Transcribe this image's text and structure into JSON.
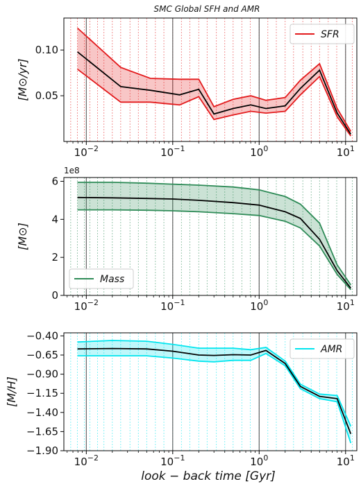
{
  "title": "SMC Global SFH and AMR",
  "xlabel": "look − back time [Gyr]",
  "chart_data": [
    {
      "type": "line",
      "name": "sfr-panel",
      "ylabel": "[M⊙/yr]",
      "legend": "SFR",
      "legend_loc": "top-right",
      "color": "#e31a1c",
      "xscale": "log",
      "xlim": [
        0.0055,
        13.5
      ],
      "ylim": [
        0.0,
        0.135
      ],
      "yticks": [
        0.05,
        0.1
      ],
      "ytick_labels": [
        "0.05",
        "0.10"
      ],
      "x": [
        0.0079,
        0.025,
        0.055,
        0.12,
        0.2,
        0.3,
        0.5,
        0.8,
        1.2,
        2.0,
        3.0,
        5.0,
        8.0,
        11.5
      ],
      "y": [
        0.098,
        0.06,
        0.056,
        0.051,
        0.057,
        0.03,
        0.036,
        0.04,
        0.036,
        0.039,
        0.058,
        0.078,
        0.031,
        0.008
      ],
      "y_upper": [
        0.124,
        0.081,
        0.069,
        0.068,
        0.068,
        0.038,
        0.046,
        0.05,
        0.045,
        0.048,
        0.067,
        0.085,
        0.036,
        0.011
      ],
      "y_lower": [
        0.079,
        0.043,
        0.043,
        0.04,
        0.049,
        0.024,
        0.029,
        0.033,
        0.031,
        0.033,
        0.051,
        0.071,
        0.027,
        0.006
      ],
      "bins": [
        0.0066,
        0.0079,
        0.0095,
        0.011,
        0.0135,
        0.016,
        0.02,
        0.025,
        0.032,
        0.04,
        0.05,
        0.063,
        0.079,
        0.1,
        0.126,
        0.158,
        0.2,
        0.25,
        0.32,
        0.4,
        0.5,
        0.63,
        0.79,
        1.0,
        1.26,
        1.58,
        2.0,
        2.5,
        3.2,
        4.0,
        5.0,
        6.3,
        7.9,
        10.0,
        12.0
      ]
    },
    {
      "type": "line",
      "name": "mass-panel",
      "ylabel": "[M⊙]",
      "offset": "1e8",
      "legend": "Mass",
      "legend_loc": "bottom-left",
      "color": "#2e8b57",
      "xscale": "log",
      "xlim": [
        0.0055,
        13.5
      ],
      "ylim": [
        0,
        6.2
      ],
      "yticks": [
        0,
        2,
        4,
        6
      ],
      "ytick_labels": [
        "0",
        "2",
        "4",
        "6"
      ],
      "x": [
        0.0079,
        0.02,
        0.05,
        0.1,
        0.2,
        0.5,
        1.0,
        2.0,
        3.0,
        5.0,
        8.0,
        11.5
      ],
      "y": [
        5.15,
        5.13,
        5.1,
        5.07,
        5.0,
        4.88,
        4.75,
        4.4,
        4.05,
        2.95,
        1.3,
        0.38
      ],
      "y_upper": [
        5.95,
        5.95,
        5.9,
        5.85,
        5.8,
        5.7,
        5.55,
        5.2,
        4.8,
        3.8,
        1.6,
        0.55
      ],
      "y_lower": [
        4.5,
        4.5,
        4.48,
        4.45,
        4.4,
        4.3,
        4.2,
        3.9,
        3.55,
        2.6,
        1.1,
        0.3
      ],
      "bins": [
        0.0066,
        0.0079,
        0.0095,
        0.011,
        0.0135,
        0.016,
        0.02,
        0.025,
        0.032,
        0.04,
        0.05,
        0.063,
        0.079,
        0.1,
        0.126,
        0.158,
        0.2,
        0.25,
        0.32,
        0.4,
        0.5,
        0.63,
        0.79,
        1.0,
        1.26,
        1.58,
        2.0,
        2.5,
        3.2,
        4.0,
        5.0,
        6.3,
        7.9,
        10.0,
        12.0
      ]
    },
    {
      "type": "line",
      "name": "amr-panel",
      "ylabel": "[M/H]",
      "legend": "AMR",
      "legend_loc": "top-right",
      "color": "#00e5ee",
      "xscale": "log",
      "xlim": [
        0.0055,
        13.5
      ],
      "ylim": [
        -1.9,
        -0.36
      ],
      "yticks": [
        -1.9,
        -1.65,
        -1.4,
        -1.15,
        -0.9,
        -0.65,
        -0.4
      ],
      "ytick_labels": [
        "−1.90",
        "−1.65",
        "−1.40",
        "−1.15",
        "−0.90",
        "−0.65",
        "−0.40"
      ],
      "x": [
        0.0079,
        0.02,
        0.05,
        0.1,
        0.2,
        0.3,
        0.5,
        0.8,
        1.2,
        2.0,
        3.0,
        5.0,
        8.0,
        11.5
      ],
      "y": [
        -0.57,
        -0.565,
        -0.57,
        -0.6,
        -0.65,
        -0.655,
        -0.645,
        -0.65,
        -0.59,
        -0.76,
        -1.06,
        -1.19,
        -1.22,
        -1.68
      ],
      "y_upper": [
        -0.48,
        -0.46,
        -0.47,
        -0.51,
        -0.56,
        -0.56,
        -0.56,
        -0.58,
        -0.55,
        -0.73,
        -1.03,
        -1.16,
        -1.18,
        -1.58
      ],
      "y_lower": [
        -0.66,
        -0.66,
        -0.66,
        -0.69,
        -0.73,
        -0.74,
        -0.72,
        -0.72,
        -0.63,
        -0.79,
        -1.09,
        -1.22,
        -1.26,
        -1.8
      ],
      "bins": [
        0.0066,
        0.0079,
        0.0095,
        0.011,
        0.0135,
        0.016,
        0.02,
        0.025,
        0.032,
        0.04,
        0.05,
        0.063,
        0.079,
        0.1,
        0.126,
        0.158,
        0.2,
        0.25,
        0.32,
        0.4,
        0.5,
        0.63,
        0.79,
        1.0,
        1.26,
        1.58,
        2.0,
        2.5,
        3.2,
        4.0,
        5.0,
        6.3,
        7.9,
        10.0,
        12.0
      ]
    }
  ],
  "xticks": {
    "values": [
      0.01,
      0.1,
      1.0,
      10.0
    ],
    "bases": [
      "10",
      "10",
      "10",
      "10"
    ],
    "exponents": [
      "−2",
      "−1",
      "0",
      "1"
    ]
  }
}
